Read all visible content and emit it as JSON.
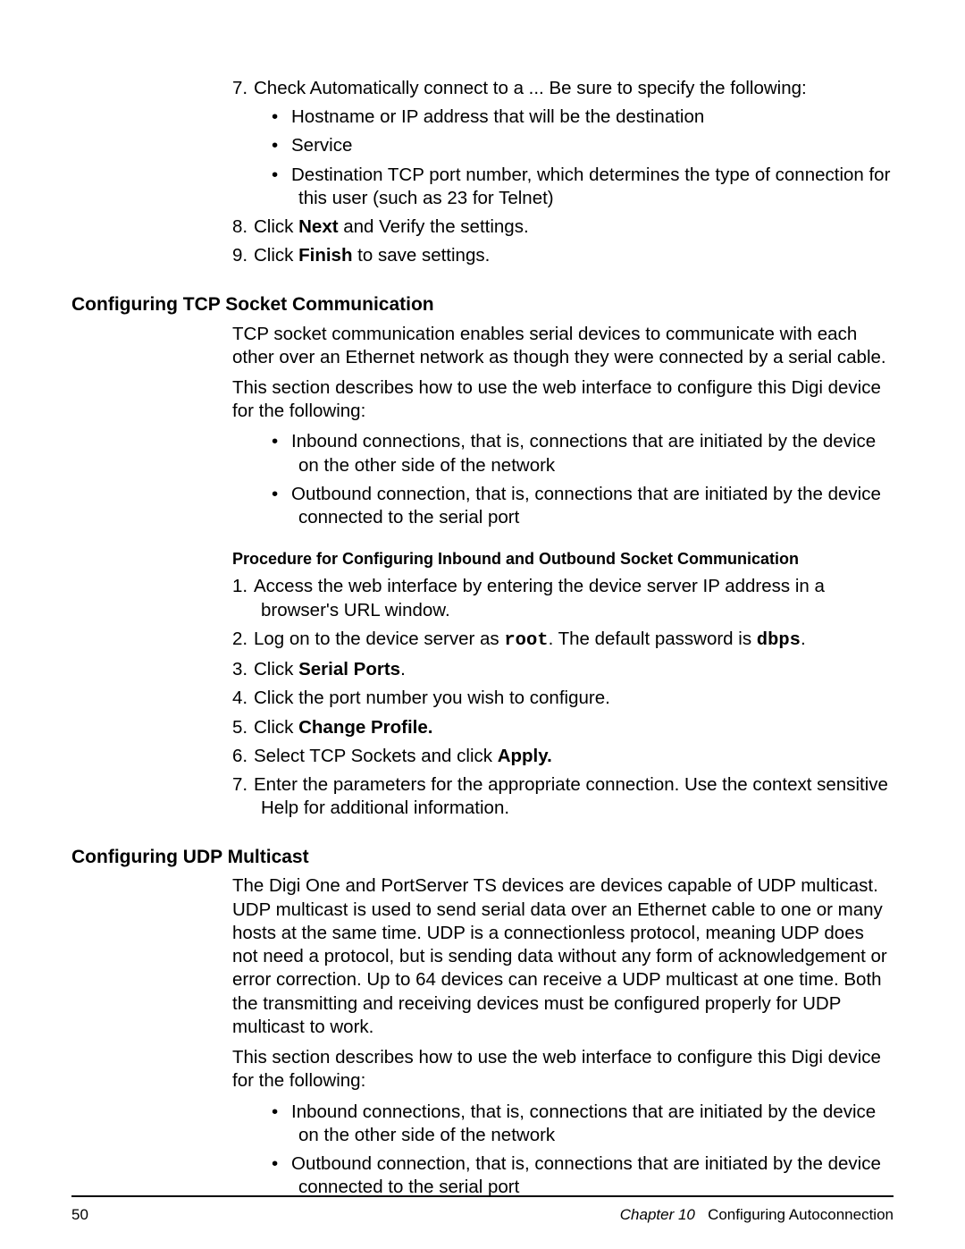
{
  "top_steps": {
    "s7": {
      "num": "7.",
      "text": "Check Automatically connect to a ... Be sure to specify the following:"
    },
    "bullets": {
      "b1": "Hostname or IP address that will be the destination",
      "b2": "Service",
      "b3": "Destination TCP port number, which determines the type of connection for this user (such as 23 for Telnet)"
    },
    "s8": {
      "num": "8.",
      "pre": "Click ",
      "bold": "Next",
      "post": " and Verify the settings."
    },
    "s9": {
      "num": "9.",
      "pre": "Click ",
      "bold": "Finish",
      "post": " to save settings."
    }
  },
  "tcp": {
    "heading": "Configuring TCP Socket Communication",
    "p1": "TCP socket communication enables serial devices to communicate with each other over an Ethernet network as though they were connected by a serial cable.",
    "p2": "This section describes how to use the web interface to configure this Digi device for the following:",
    "bullets": {
      "b1": "Inbound connections, that is, connections that are initiated by the device on the other side of the network",
      "b2": "Outbound connection, that is, connections that are initiated by the device connected to the serial port"
    },
    "subheading": "Procedure for Configuring Inbound and Outbound Socket Communication",
    "steps": {
      "s1": {
        "num": "1.",
        "text": "Access the web interface by entering the device server IP address in a browser's URL window."
      },
      "s2": {
        "num": "2.",
        "pre": "Log on to the device server as ",
        "mono1": "root",
        "mid": ". The default password is ",
        "mono2": "dbps",
        "post": "."
      },
      "s3": {
        "num": "3.",
        "pre": "Click ",
        "bold": "Serial Ports",
        "post": "."
      },
      "s4": {
        "num": "4.",
        "text": "Click the port number you wish to configure."
      },
      "s5": {
        "num": "5.",
        "pre": "Click ",
        "bold": "Change Profile."
      },
      "s6": {
        "num": "6.",
        "pre": "Select TCP Sockets and click ",
        "bold": "Apply."
      },
      "s7": {
        "num": "7.",
        "text": "Enter the parameters for the appropriate connection. Use the context sensitive Help for additional information."
      }
    }
  },
  "udp": {
    "heading": "Configuring UDP Multicast",
    "p1": "The Digi One and PortServer TS devices are devices capable of UDP multicast. UDP multicast is used to send serial data over an Ethernet cable to one or many hosts at the same time. UDP is a connectionless protocol, meaning UDP does not need a protocol, but is sending data without any form of acknowledgement or error correction. Up to 64 devices can receive a UDP multicast at one time. Both the transmitting and receiving devices must be configured properly for UDP multicast to work.",
    "p2": "This section describes how to use the web interface to configure this Digi device for the following:",
    "bullets": {
      "b1": "Inbound connections, that is, connections that are initiated by the device on the other side of the network",
      "b2": "Outbound connection, that is, connections that are initiated by the device connected to the serial port"
    }
  },
  "footer": {
    "page": "50",
    "chapter_label": "Chapter 10",
    "chapter_title": "Configuring Autoconnection"
  },
  "glyphs": {
    "bullet": "•"
  }
}
